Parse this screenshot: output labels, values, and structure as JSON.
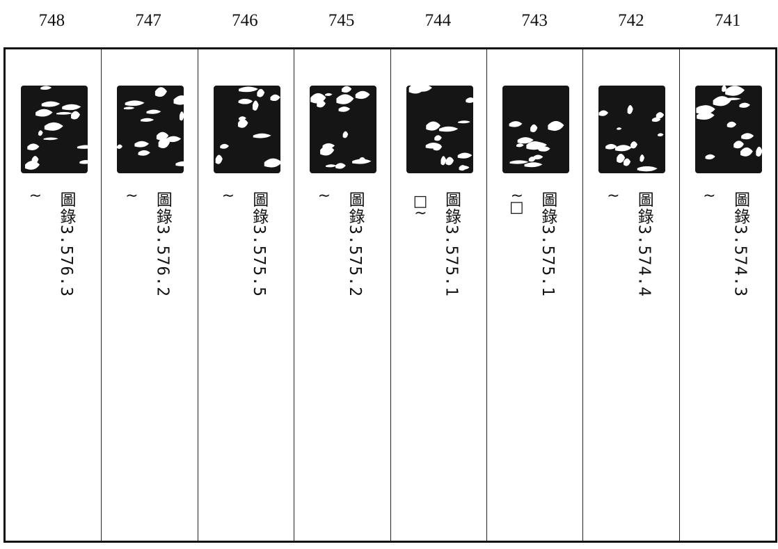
{
  "columns": [
    {
      "number": "748",
      "note": "≀",
      "ref": "圖錄3.576.3"
    },
    {
      "number": "747",
      "note": "≀",
      "ref": "圖錄3.576.2"
    },
    {
      "number": "746",
      "note": "≀",
      "ref": "圖錄3.575.5"
    },
    {
      "number": "745",
      "note": "≀",
      "ref": "圖錄3.575.2"
    },
    {
      "number": "744",
      "note": "□≀",
      "ref": "圖錄3.575.1"
    },
    {
      "number": "743",
      "note": "≀□",
      "ref": "圖錄3.575.1"
    },
    {
      "number": "742",
      "note": "≀",
      "ref": "圖錄3.574.4"
    },
    {
      "number": "741",
      "note": "≀",
      "ref": "圖錄3.574.3"
    }
  ]
}
